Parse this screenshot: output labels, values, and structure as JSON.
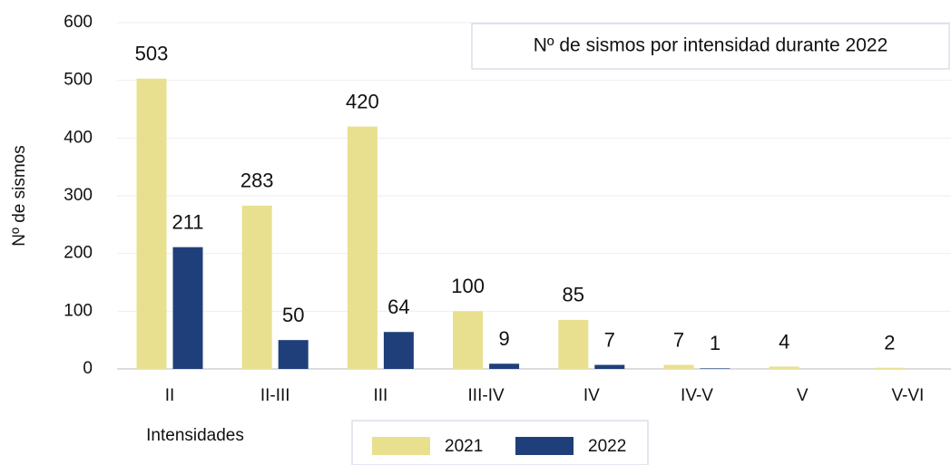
{
  "chart_data": {
    "type": "bar",
    "title": "Nº de sismos por intensidad durante 2022",
    "x_label": "Intensidades",
    "y_label": "Nº de sismos",
    "categories": [
      "II",
      "II-III",
      "III",
      "III-IV",
      "IV",
      "IV-V",
      "V",
      "V-VI"
    ],
    "series": [
      {
        "name": "2021",
        "color": "#e8e08e",
        "label_color": "#8a8a2e",
        "values": [
          503,
          283,
          420,
          100,
          85,
          7,
          4,
          2
        ]
      },
      {
        "name": "2022",
        "color": "#1f3f7a",
        "label_color": "#2f538f",
        "values": [
          211,
          50,
          64,
          9,
          7,
          1,
          null,
          null
        ]
      }
    ],
    "ylim": [
      0,
      600
    ],
    "yticks": [
      0,
      100,
      200,
      300,
      400,
      500,
      600
    ],
    "grid": true
  }
}
